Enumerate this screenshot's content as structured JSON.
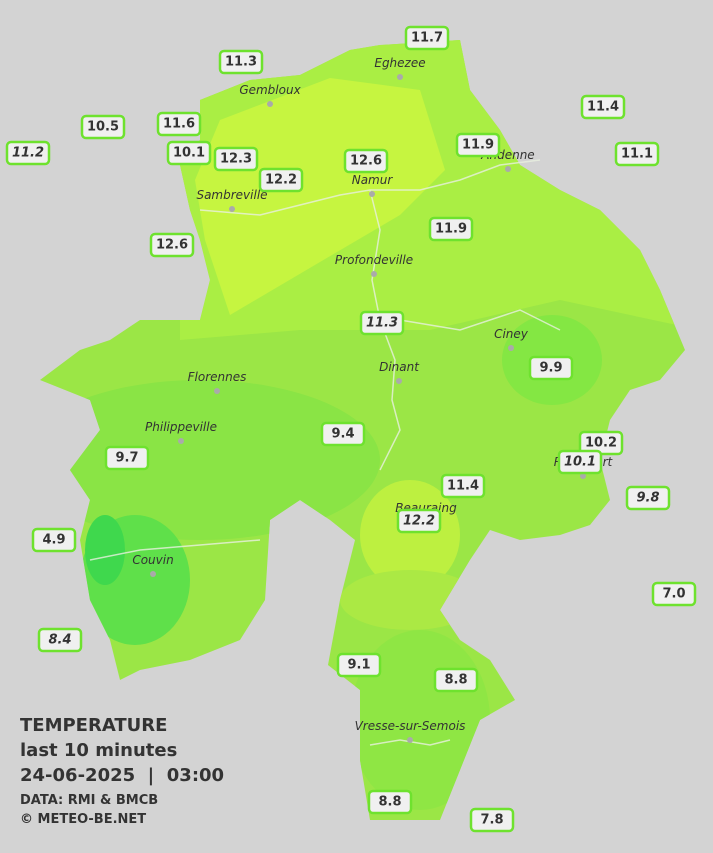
{
  "map": {
    "stations": [
      {
        "label": "11.7"
      },
      {
        "label": "11.3"
      },
      {
        "label": "11.4"
      },
      {
        "label": "10.5"
      },
      {
        "label": "11.6"
      },
      {
        "label": "11.2",
        "italic": true
      },
      {
        "label": "10.1"
      },
      {
        "label": "12.3"
      },
      {
        "label": "12.6"
      },
      {
        "label": "11.9"
      },
      {
        "label": "11.1"
      },
      {
        "label": "12.2"
      },
      {
        "label": "12.6"
      },
      {
        "label": "11.9"
      },
      {
        "label": "11.3",
        "italic": true
      },
      {
        "label": "9.9"
      },
      {
        "label": "9.4"
      },
      {
        "label": "9.7"
      },
      {
        "label": "10.2"
      },
      {
        "label": "10.1",
        "italic": true
      },
      {
        "label": "9.8",
        "italic": true
      },
      {
        "label": "11.4"
      },
      {
        "label": "12.2",
        "italic": true
      },
      {
        "label": "4.9"
      },
      {
        "label": "7.0"
      },
      {
        "label": "8.4",
        "italic": true
      },
      {
        "label": "9.1"
      },
      {
        "label": "8.8"
      },
      {
        "label": "8.8"
      },
      {
        "label": "7.8"
      }
    ],
    "cities": [
      "Eghezee",
      "Gembloux",
      "Andenne",
      "Namur",
      "Sambreville",
      "Profondeville",
      "Ciney",
      "Dinant",
      "Florennes",
      "Philippeville",
      "Rochefort",
      "Beauraing",
      "Couvin",
      "Vresse-sur-Semois"
    ]
  },
  "legend": {
    "title": "TEMPERATURE",
    "period": "last 10 minutes",
    "datetime": "24-06-2025  |  03:00",
    "source": "DATA: RMI & BMCB",
    "copyright": "© METEO-BE.NET"
  }
}
